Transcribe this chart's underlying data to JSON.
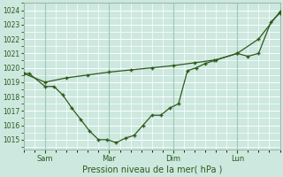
{
  "bg_color": "#cce8df",
  "grid_color": "#ffffff",
  "line_color": "#2d5a1b",
  "marker_color": "#2d5a1b",
  "xlabel": "Pression niveau de la mer( hPa )",
  "ylim": [
    1014.3,
    1024.5
  ],
  "yticks": [
    1015,
    1016,
    1017,
    1018,
    1019,
    1020,
    1021,
    1022,
    1023,
    1024
  ],
  "xtick_labels": [
    "Sam",
    "Mar",
    "Dim",
    "Lun"
  ],
  "xtick_positions": [
    24,
    96,
    168,
    240
  ],
  "vline_positions": [
    24,
    96,
    168,
    240
  ],
  "xlim": [
    0,
    288
  ],
  "series1_x": [
    0,
    6,
    24,
    34,
    44,
    54,
    64,
    74,
    84,
    94,
    104,
    114,
    124,
    134,
    144,
    154,
    164,
    174,
    184,
    194,
    204,
    214,
    240,
    252,
    264,
    278,
    288
  ],
  "series1_y": [
    1019.6,
    1019.6,
    1018.7,
    1018.7,
    1018.1,
    1017.2,
    1016.4,
    1015.6,
    1015.0,
    1015.0,
    1014.8,
    1015.1,
    1015.3,
    1016.0,
    1016.7,
    1016.7,
    1017.2,
    1017.5,
    1019.8,
    1020.0,
    1020.3,
    1020.5,
    1021.0,
    1020.8,
    1021.0,
    1023.2,
    1023.8
  ],
  "series2_x": [
    0,
    24,
    48,
    72,
    96,
    120,
    144,
    168,
    192,
    216,
    240,
    264,
    288
  ],
  "series2_y": [
    1019.6,
    1019.0,
    1019.3,
    1019.5,
    1019.7,
    1019.85,
    1020.0,
    1020.15,
    1020.35,
    1020.55,
    1021.0,
    1022.0,
    1023.9
  ]
}
